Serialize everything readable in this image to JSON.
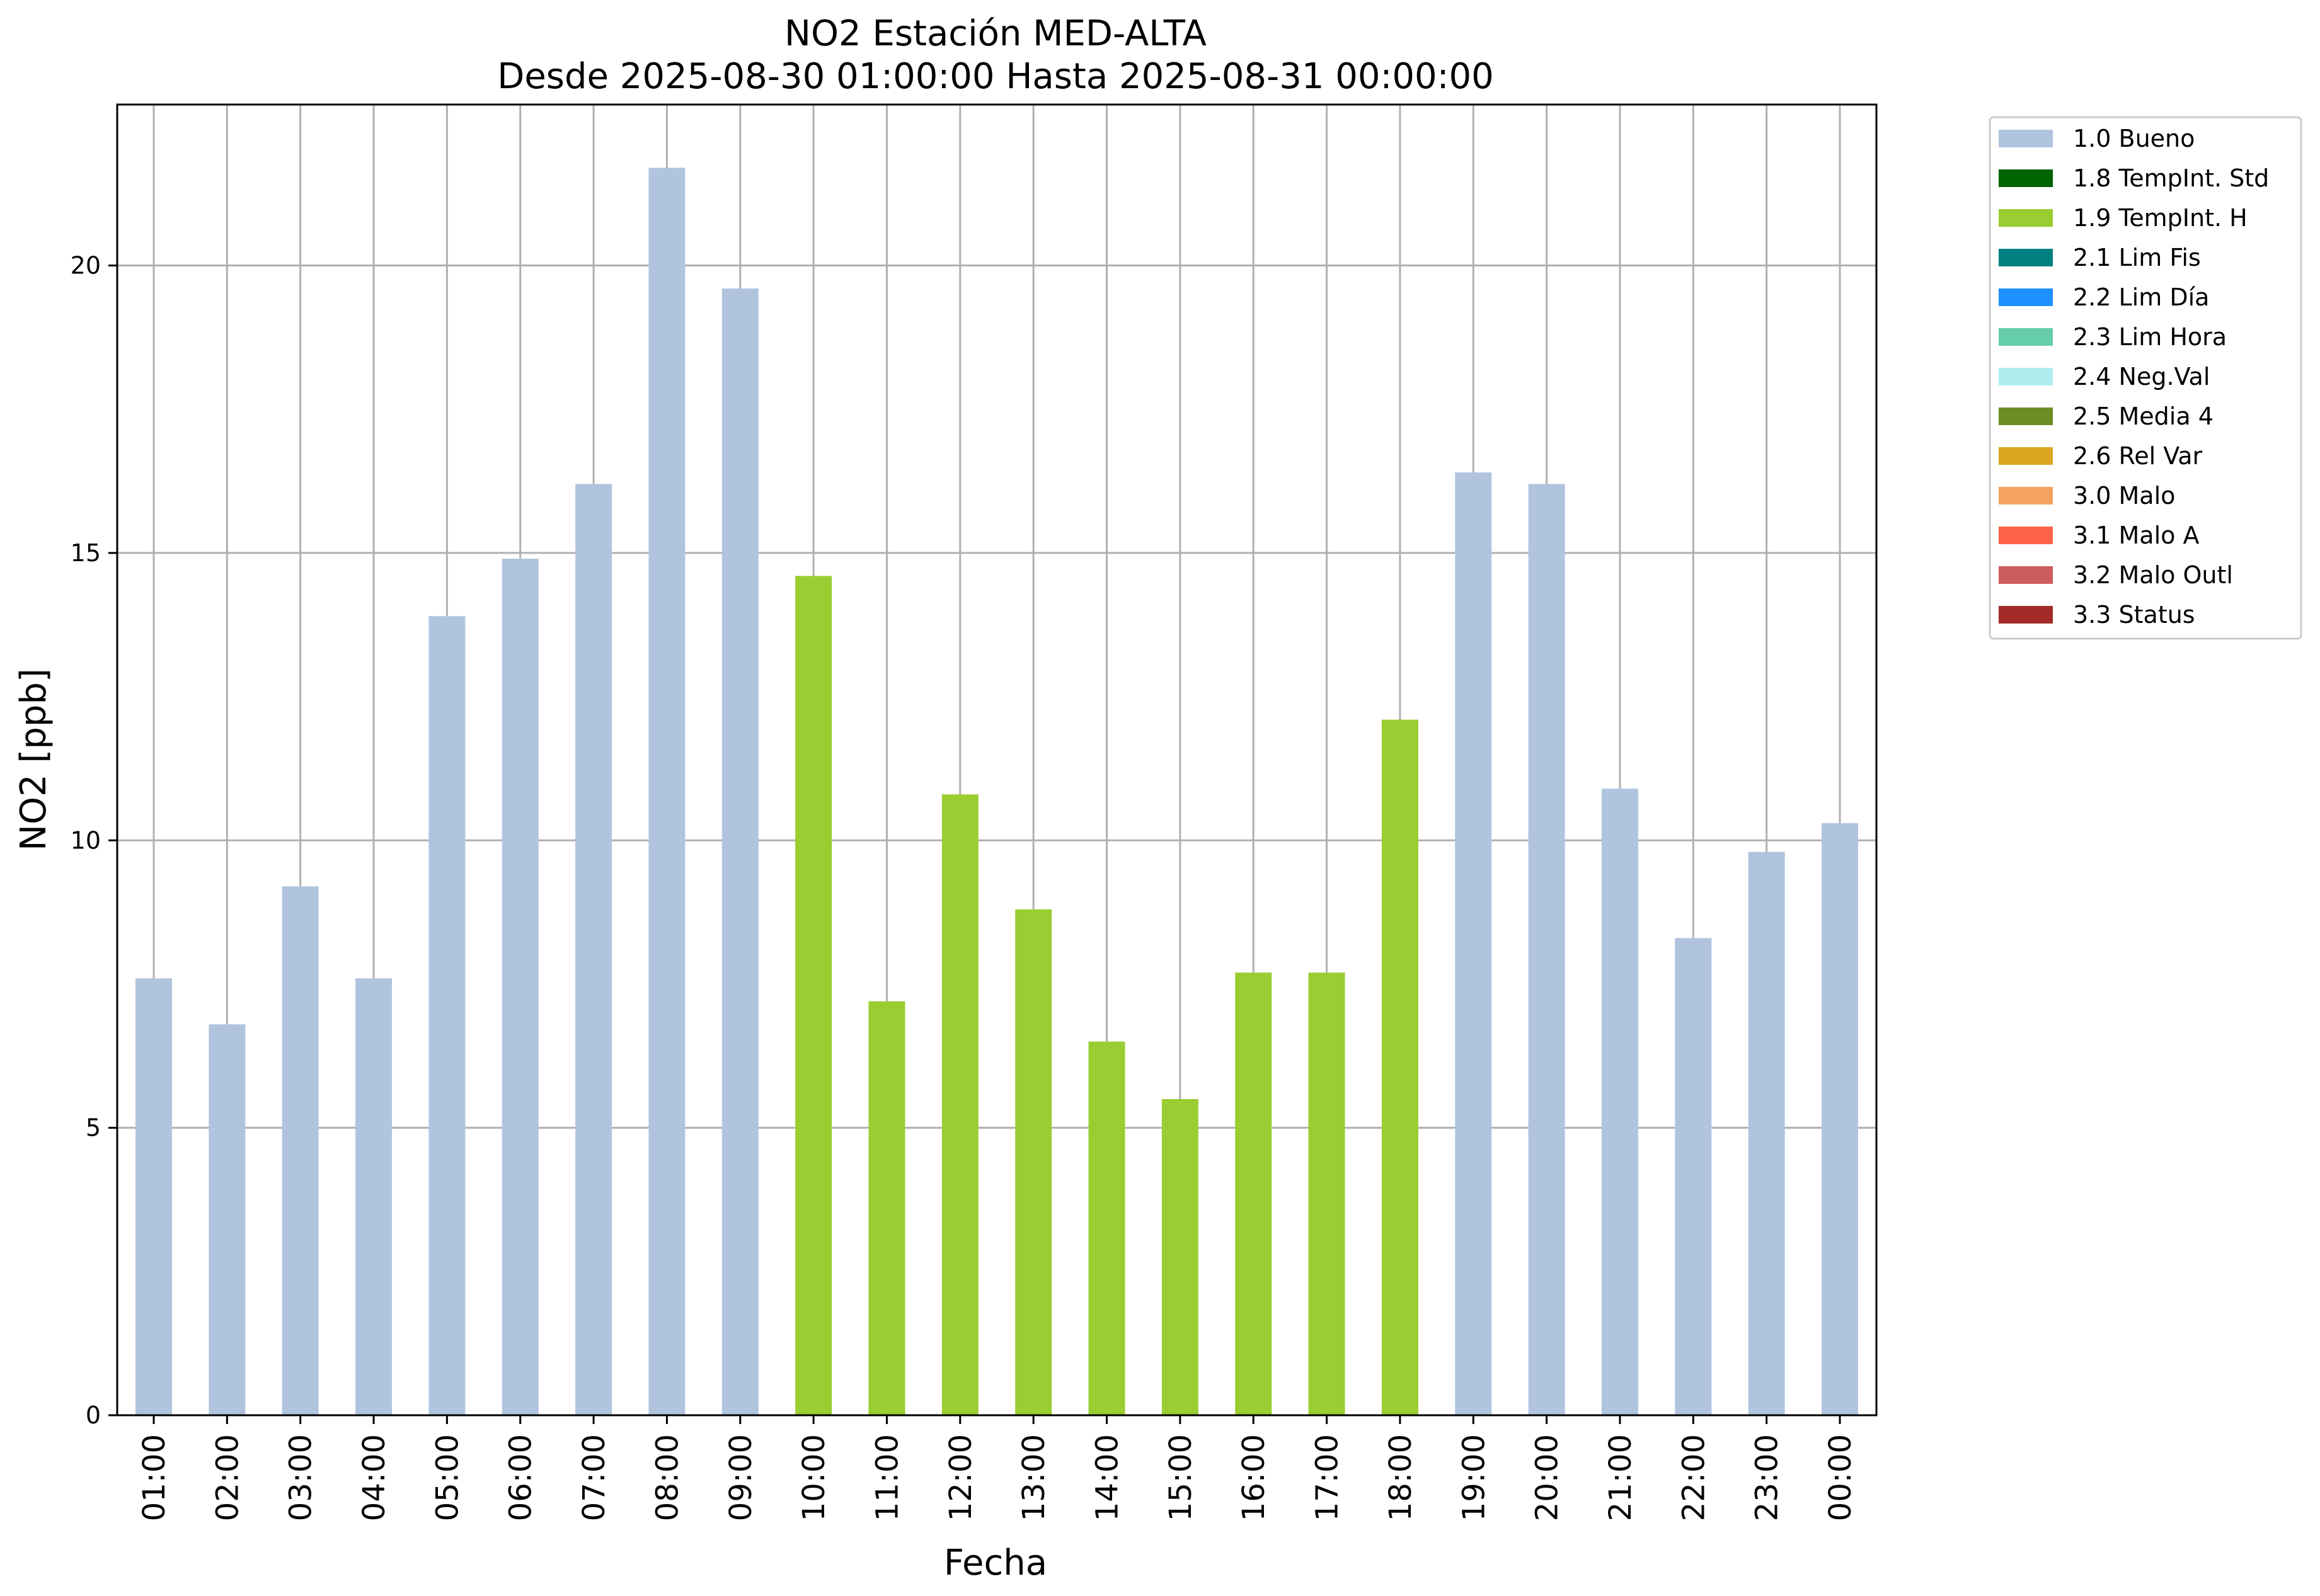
{
  "chart_data": {
    "type": "bar",
    "title": "NO2 Estación MED-ALTA",
    "subtitle": "Desde 2025-08-30 01:00:00 Hasta 2025-08-31 00:00:00",
    "xlabel": "Fecha",
    "ylabel": "NO2 [ppb]",
    "ylim": [
      0,
      22.8
    ],
    "yticks": [
      0,
      5,
      10,
      15,
      20
    ],
    "grid": true,
    "legend_position": "outside top-right",
    "categories": [
      "01:00",
      "02:00",
      "03:00",
      "04:00",
      "05:00",
      "06:00",
      "07:00",
      "08:00",
      "09:00",
      "10:00",
      "11:00",
      "12:00",
      "13:00",
      "14:00",
      "15:00",
      "16:00",
      "17:00",
      "18:00",
      "19:00",
      "20:00",
      "21:00",
      "22:00",
      "23:00",
      "00:00"
    ],
    "values": [
      7.6,
      6.8,
      9.2,
      7.6,
      13.9,
      14.9,
      16.2,
      21.7,
      19.6,
      14.6,
      7.2,
      10.8,
      8.8,
      6.5,
      5.5,
      7.7,
      7.7,
      12.1,
      16.4,
      16.2,
      10.9,
      8.3,
      9.8,
      10.3
    ],
    "flags": [
      "1.0 Bueno",
      "1.0 Bueno",
      "1.0 Bueno",
      "1.0 Bueno",
      "1.0 Bueno",
      "1.0 Bueno",
      "1.0 Bueno",
      "1.0 Bueno",
      "1.0 Bueno",
      "1.9 TempInt. H",
      "1.9 TempInt. H",
      "1.9 TempInt. H",
      "1.9 TempInt. H",
      "1.9 TempInt. H",
      "1.9 TempInt. H",
      "1.9 TempInt. H",
      "1.9 TempInt. H",
      "1.9 TempInt. H",
      "1.0 Bueno",
      "1.0 Bueno",
      "1.0 Bueno",
      "1.0 Bueno",
      "1.0 Bueno",
      "1.0 Bueno"
    ],
    "legend": [
      {
        "name": "1.0 Bueno",
        "color": "#b0c4de"
      },
      {
        "name": "1.8 TempInt. Std",
        "color": "#006400"
      },
      {
        "name": "1.9 TempInt. H",
        "color": "#9acd32"
      },
      {
        "name": "2.1 Lim Fis",
        "color": "#008080"
      },
      {
        "name": "2.2 Lim Día",
        "color": "#1e90ff"
      },
      {
        "name": "2.3 Lim Hora",
        "color": "#66cdaa"
      },
      {
        "name": "2.4 Neg.Val",
        "color": "#afeeee"
      },
      {
        "name": "2.5 Media 4",
        "color": "#6b8e23"
      },
      {
        "name": "2.6 Rel Var",
        "color": "#daa520"
      },
      {
        "name": "3.0 Malo",
        "color": "#f4a460"
      },
      {
        "name": "3.1 Malo A",
        "color": "#ff6347"
      },
      {
        "name": "3.2 Malo Outl",
        "color": "#cd5c5c"
      },
      {
        "name": "3.3 Status",
        "color": "#a52a2a"
      }
    ]
  }
}
